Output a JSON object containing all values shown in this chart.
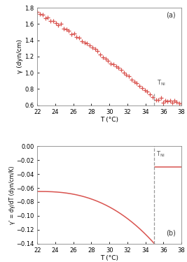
{
  "T_NI": 35.0,
  "T_start": 22.0,
  "T_end": 38.0,
  "color_data": "#d9534f",
  "color_line": "#d9534f",
  "color_dashed": "#999999",
  "panel_a": {
    "ylabel": "γ (dyn/cm)",
    "xlabel": "T (°C)",
    "label": "(a)",
    "ylim": [
      0.6,
      1.8
    ],
    "yticks": [
      0.6,
      0.8,
      1.0,
      1.2,
      1.4,
      1.6,
      1.8
    ],
    "xticks": [
      22,
      24,
      26,
      28,
      30,
      32,
      34,
      36,
      38
    ]
  },
  "panel_b": {
    "ylabel": "γ' = dγ/dT (dyn/cm/K)",
    "xlabel": "T (°C)",
    "label": "(b)",
    "ylim": [
      -0.14,
      0.0
    ],
    "yticks": [
      0.0,
      -0.02,
      -0.04,
      -0.06,
      -0.08,
      -0.1,
      -0.12,
      -0.14
    ],
    "xticks": [
      22,
      24,
      26,
      28,
      30,
      32,
      34,
      36,
      38
    ]
  },
  "background_color": "#ffffff"
}
